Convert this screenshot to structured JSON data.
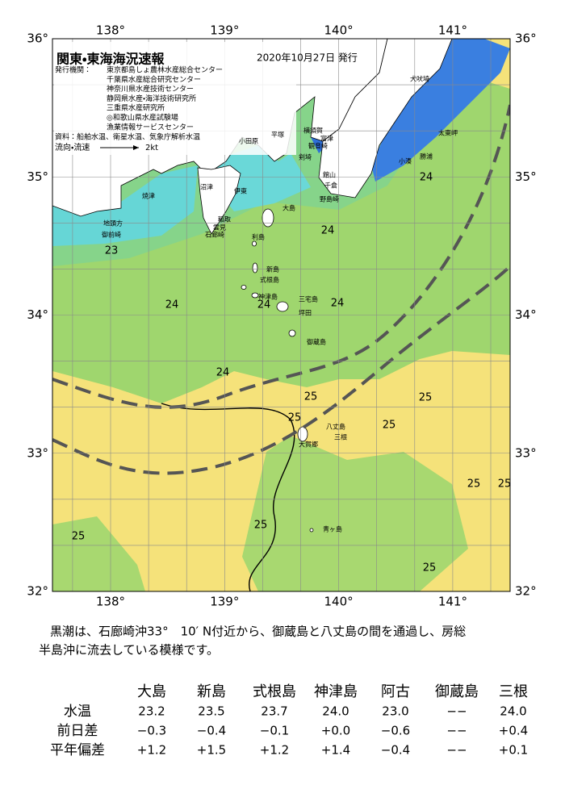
{
  "header": {
    "title": "関東・東海海況速報",
    "issued": "2020年10月27日 発行",
    "issuer_label": "発行機関：",
    "issuers": [
      "東京都島しょ農林水産総合センター",
      "千葉県水産総合研究センター",
      "神奈川県水産技術センター",
      "静岡県水産・海洋技術研究所",
      "三重県水産研究所",
      "◎和歌山県水産試験場",
      "漁業情報サービスセンター"
    ],
    "source": "資料：船舶水温、衛星水温、気象庁解析水温",
    "flow_label": "流向・流速",
    "flow_unit": "2kt"
  },
  "map": {
    "lon_labels": [
      "138°",
      "139°",
      "140°",
      "141°"
    ],
    "lat_labels": [
      "36°",
      "35°",
      "34°",
      "33°",
      "32°"
    ],
    "places": [
      "犬吠埼",
      "太東岬",
      "勝浦",
      "小湊",
      "富津",
      "横須賀",
      "観音崎",
      "剣埼",
      "平塚",
      "小田原",
      "館山",
      "千倉",
      "野島崎",
      "大島",
      "利島",
      "新島",
      "式根島",
      "神津島",
      "三宅島",
      "坪田",
      "御蔵島",
      "八丈島",
      "三根",
      "大賀郷",
      "青ヶ島",
      "焼津",
      "御前崎",
      "地頭方",
      "沼津",
      "伊東",
      "稲取",
      "雲見",
      "石廊崎"
    ],
    "contour_labels": [
      "23",
      "24",
      "24",
      "24",
      "24",
      "24",
      "24",
      "25",
      "25",
      "25",
      "25",
      "25",
      "25",
      "25",
      "25",
      "25"
    ]
  },
  "summary": [
    "黒潮は、石廊崎沖33°　10′ N付近から、御蔵島と八丈島の間を通過し、房総",
    "半島沖に流去している模様です。"
  ],
  "table": {
    "columns": [
      "大島",
      "新島",
      "式根島",
      "神津島",
      "阿古",
      "御蔵島",
      "三根"
    ],
    "rows": [
      {
        "label": "水温",
        "cells": [
          "23.2",
          "23.5",
          "23.7",
          "24.0",
          "23.0",
          "−−",
          "24.0"
        ]
      },
      {
        "label": "前日差",
        "cells": [
          "−0.3",
          "−0.4",
          "−0.1",
          "+0.0",
          "−0.6",
          "−−",
          "+0.4"
        ]
      },
      {
        "label": "平年偏差",
        "cells": [
          "+1.2",
          "+1.5",
          "+1.2",
          "+1.4",
          "−0.4",
          "−−",
          "+0.1"
        ]
      }
    ]
  }
}
